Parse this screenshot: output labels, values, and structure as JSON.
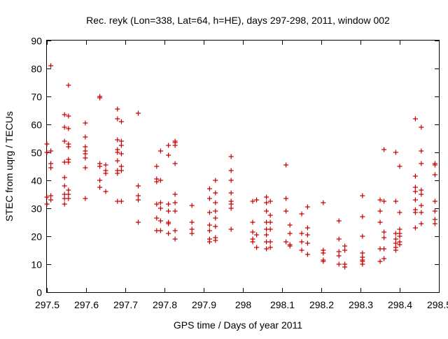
{
  "chart_data": {
    "type": "scatter",
    "title": "Rec. reyk (Lon=338, Lat=64, h=HE), days 297-298, 2011, window 002",
    "xlabel": "GPS time / Days of year 2011",
    "ylabel": "STEC from uqrg / TECUs",
    "xlim": [
      297.5,
      298.5
    ],
    "ylim": [
      0,
      90
    ],
    "x_ticks": [
      "297.5",
      "297.6",
      "297.7",
      "297.8",
      "297.9",
      "298",
      "298.1",
      "298.2",
      "298.3",
      "298.4",
      "298.5"
    ],
    "y_ticks": [
      "0",
      "10",
      "20",
      "30",
      "40",
      "50",
      "60",
      "70",
      "80",
      "90"
    ],
    "grid": false,
    "marker": "+",
    "color": "#cc0000",
    "series": [
      {
        "points": [
          [
            297.5,
            53.0
          ],
          [
            297.5,
            50.0
          ],
          [
            297.5,
            31.5
          ],
          [
            297.5,
            34.0
          ],
          [
            297.51,
            81.0
          ],
          [
            297.51,
            46.0
          ],
          [
            297.51,
            44.5
          ],
          [
            297.51,
            33.0
          ],
          [
            297.51,
            34.5
          ],
          [
            297.51,
            50.5
          ],
          [
            297.545,
            63.5
          ],
          [
            297.545,
            59.0
          ],
          [
            297.545,
            54.0
          ],
          [
            297.545,
            46.5
          ],
          [
            297.545,
            41.0
          ],
          [
            297.545,
            38.0
          ],
          [
            297.545,
            35.0
          ],
          [
            297.545,
            33.5
          ],
          [
            297.545,
            31.5
          ],
          [
            297.555,
            74.0
          ],
          [
            297.555,
            63.0
          ],
          [
            297.555,
            58.5
          ],
          [
            297.555,
            53.0
          ],
          [
            297.555,
            52.0
          ],
          [
            297.555,
            47.5
          ],
          [
            297.555,
            46.5
          ],
          [
            297.555,
            36.5
          ],
          [
            297.555,
            35.0
          ],
          [
            297.555,
            33.5
          ],
          [
            297.598,
            60.5
          ],
          [
            297.598,
            55.5
          ],
          [
            297.598,
            52.0
          ],
          [
            297.598,
            50.5
          ],
          [
            297.598,
            49.5
          ],
          [
            297.598,
            48.0
          ],
          [
            297.598,
            44.5
          ],
          [
            297.598,
            33.5
          ],
          [
            297.635,
            70.0
          ],
          [
            297.635,
            69.5
          ],
          [
            297.635,
            46.0
          ],
          [
            297.635,
            45.0
          ],
          [
            297.635,
            40.0
          ],
          [
            297.635,
            37.5
          ],
          [
            297.65,
            45.5
          ],
          [
            297.65,
            43.5
          ],
          [
            297.65,
            42.5
          ],
          [
            297.65,
            36.0
          ],
          [
            297.68,
            65.5
          ],
          [
            297.68,
            62.0
          ],
          [
            297.68,
            54.5
          ],
          [
            297.68,
            51.0
          ],
          [
            297.68,
            50.0
          ],
          [
            297.68,
            47.0
          ],
          [
            297.68,
            43.5
          ],
          [
            297.68,
            42.5
          ],
          [
            297.68,
            32.5
          ],
          [
            297.69,
            61.0
          ],
          [
            297.69,
            54.0
          ],
          [
            297.69,
            52.5
          ],
          [
            297.69,
            49.5
          ],
          [
            297.69,
            45.0
          ],
          [
            297.69,
            43.5
          ],
          [
            297.69,
            32.5
          ],
          [
            297.733,
            64.0
          ],
          [
            297.733,
            38.0
          ],
          [
            297.733,
            34.5
          ],
          [
            297.733,
            33.0
          ],
          [
            297.733,
            25.0
          ],
          [
            297.78,
            45.0
          ],
          [
            297.78,
            40.5
          ],
          [
            297.78,
            39.5
          ],
          [
            297.78,
            31.5
          ],
          [
            297.78,
            26.5
          ],
          [
            297.78,
            22.0
          ],
          [
            297.79,
            50.5
          ],
          [
            297.79,
            40.0
          ],
          [
            297.79,
            32.0
          ],
          [
            297.79,
            30.0
          ],
          [
            297.79,
            25.5
          ],
          [
            297.79,
            22.0
          ],
          [
            297.81,
            52.5
          ],
          [
            297.81,
            49.0
          ],
          [
            297.81,
            31.5
          ],
          [
            297.81,
            29.0
          ],
          [
            297.81,
            25.0
          ],
          [
            297.81,
            24.5
          ],
          [
            297.81,
            21.0
          ],
          [
            297.827,
            54.0
          ],
          [
            297.827,
            53.5
          ],
          [
            297.827,
            52.5
          ],
          [
            297.827,
            46.0
          ],
          [
            297.827,
            35.0
          ],
          [
            297.827,
            32.0
          ],
          [
            297.827,
            29.0
          ],
          [
            297.827,
            22.0
          ],
          [
            297.827,
            19.0
          ],
          [
            297.87,
            31.0
          ],
          [
            297.87,
            25.0
          ],
          [
            297.87,
            22.5
          ],
          [
            297.87,
            21.0
          ],
          [
            297.915,
            37.0
          ],
          [
            297.915,
            33.5
          ],
          [
            297.915,
            28.5
          ],
          [
            297.915,
            24.0
          ],
          [
            297.915,
            22.0
          ],
          [
            297.915,
            19.0
          ],
          [
            297.915,
            18.0
          ],
          [
            297.93,
            40.0
          ],
          [
            297.93,
            35.5
          ],
          [
            297.93,
            32.0
          ],
          [
            297.93,
            29.0
          ],
          [
            297.93,
            26.5
          ],
          [
            297.93,
            23.5
          ],
          [
            297.93,
            19.5
          ],
          [
            297.93,
            18.5
          ],
          [
            297.97,
            48.5
          ],
          [
            297.97,
            43.5
          ],
          [
            297.97,
            40.0
          ],
          [
            297.97,
            35.5
          ],
          [
            297.97,
            32.5
          ],
          [
            297.97,
            31.5
          ],
          [
            297.97,
            30.0
          ],
          [
            297.97,
            22.5
          ],
          [
            298.025,
            32.5
          ],
          [
            298.025,
            25.0
          ],
          [
            298.025,
            21.5
          ],
          [
            298.025,
            19.0
          ],
          [
            298.025,
            18.0
          ],
          [
            298.035,
            33.0
          ],
          [
            298.035,
            20.5
          ],
          [
            298.035,
            16.0
          ],
          [
            298.06,
            34.0
          ],
          [
            298.06,
            32.0
          ],
          [
            298.06,
            29.0
          ],
          [
            298.06,
            25.0
          ],
          [
            298.06,
            22.5
          ],
          [
            298.06,
            20.5
          ],
          [
            298.06,
            18.0
          ],
          [
            298.06,
            15.5
          ],
          [
            298.07,
            32.5
          ],
          [
            298.07,
            27.5
          ],
          [
            298.07,
            25.0
          ],
          [
            298.07,
            22.5
          ],
          [
            298.07,
            18.0
          ],
          [
            298.07,
            16.0
          ],
          [
            298.11,
            45.5
          ],
          [
            298.11,
            33.5
          ],
          [
            298.11,
            29.0
          ],
          [
            298.11,
            18.0
          ],
          [
            298.12,
            24.0
          ],
          [
            298.12,
            21.0
          ],
          [
            298.12,
            17.0
          ],
          [
            298.12,
            16.5
          ],
          [
            298.15,
            28.0
          ],
          [
            298.15,
            21.0
          ],
          [
            298.15,
            18.0
          ],
          [
            298.15,
            15.0
          ],
          [
            298.165,
            30.5
          ],
          [
            298.165,
            23.0
          ],
          [
            298.165,
            20.5
          ],
          [
            298.165,
            17.5
          ],
          [
            298.165,
            13.5
          ],
          [
            298.205,
            32.0
          ],
          [
            298.205,
            15.0
          ],
          [
            298.205,
            14.0
          ],
          [
            298.205,
            11.5
          ],
          [
            298.205,
            11.0
          ],
          [
            298.245,
            25.5
          ],
          [
            298.245,
            19.0
          ],
          [
            298.245,
            14.5
          ],
          [
            298.245,
            13.0
          ],
          [
            298.245,
            10.0
          ],
          [
            298.26,
            16.5
          ],
          [
            298.26,
            15.0
          ],
          [
            298.26,
            10.0
          ],
          [
            298.26,
            9.0
          ],
          [
            298.305,
            34.5
          ],
          [
            298.305,
            27.0
          ],
          [
            298.305,
            20.0
          ],
          [
            298.305,
            14.0
          ],
          [
            298.305,
            12.5
          ],
          [
            298.305,
            11.5
          ],
          [
            298.305,
            11.0
          ],
          [
            298.305,
            10.0
          ],
          [
            298.35,
            33.0
          ],
          [
            298.35,
            29.0
          ],
          [
            298.35,
            25.0
          ],
          [
            298.35,
            15.5
          ],
          [
            298.35,
            11.0
          ],
          [
            298.36,
            51.0
          ],
          [
            298.36,
            32.5
          ],
          [
            298.36,
            21.5
          ],
          [
            298.36,
            19.5
          ],
          [
            298.36,
            15.5
          ],
          [
            298.36,
            12.0
          ],
          [
            298.39,
            50.0
          ],
          [
            298.39,
            32.5
          ],
          [
            298.39,
            21.0
          ],
          [
            298.39,
            19.0
          ],
          [
            298.39,
            17.5
          ],
          [
            298.39,
            16.0
          ],
          [
            298.39,
            15.0
          ],
          [
            298.4,
            45.0
          ],
          [
            298.4,
            28.5
          ],
          [
            298.4,
            22.5
          ],
          [
            298.4,
            21.0
          ],
          [
            298.4,
            20.0
          ],
          [
            298.4,
            18.0
          ],
          [
            298.4,
            17.0
          ],
          [
            298.44,
            62.0
          ],
          [
            298.44,
            41.5
          ],
          [
            298.44,
            37.5
          ],
          [
            298.44,
            36.0
          ],
          [
            298.44,
            33.0
          ],
          [
            298.44,
            29.5
          ],
          [
            298.44,
            28.5
          ],
          [
            298.44,
            23.0
          ],
          [
            298.455,
            59.0
          ],
          [
            298.455,
            50.5
          ],
          [
            298.455,
            46.0
          ],
          [
            298.455,
            36.5
          ],
          [
            298.455,
            35.0
          ],
          [
            298.455,
            31.0
          ],
          [
            298.455,
            28.5
          ],
          [
            298.455,
            24.5
          ],
          [
            298.49,
            46.0
          ],
          [
            298.49,
            45.5
          ],
          [
            298.49,
            42.0
          ],
          [
            298.49,
            32.5
          ],
          [
            298.49,
            29.0
          ],
          [
            298.49,
            26.0
          ],
          [
            298.49,
            24.5
          ]
        ]
      }
    ]
  }
}
